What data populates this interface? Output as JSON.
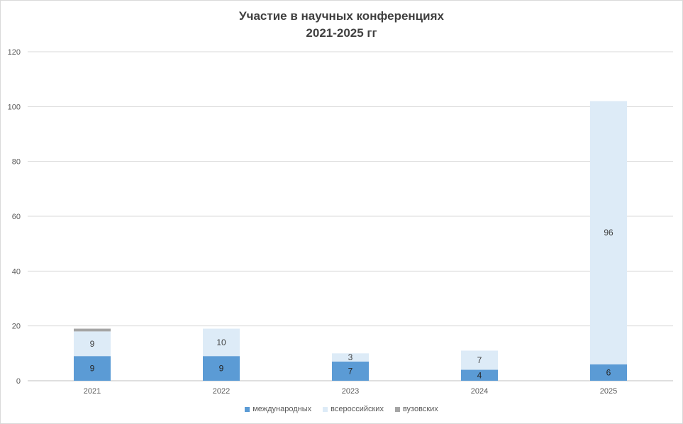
{
  "chart_data": {
    "type": "bar",
    "stacked": true,
    "title": "Участие в научных конференциях",
    "subtitle": "2021-2025 гг",
    "categories": [
      "2021",
      "2022",
      "2023",
      "2024",
      "2025"
    ],
    "ylim": [
      0,
      120
    ],
    "yticks": [
      0,
      20,
      40,
      60,
      80,
      100,
      120
    ],
    "grid": true,
    "legend_position": "bottom",
    "series": [
      {
        "name": "международных",
        "values": [
          9,
          9,
          7,
          4,
          6
        ],
        "color": "#5b9bd5",
        "label_color": "#262626"
      },
      {
        "name": "всероссийских",
        "values": [
          9,
          10,
          3,
          7,
          96
        ],
        "color": "#ddebf7",
        "label_color": "#404040"
      },
      {
        "name": "вузовских",
        "values": [
          1,
          0,
          0,
          0,
          0
        ],
        "color": "#a5a5a5",
        "label_color": "#404040"
      }
    ],
    "data_labels": [
      [
        "9",
        "9",
        "7",
        "4",
        "6"
      ],
      [
        "9",
        "10",
        "3",
        "7",
        "96"
      ],
      [
        "",
        "",
        "",
        "",
        ""
      ]
    ]
  }
}
